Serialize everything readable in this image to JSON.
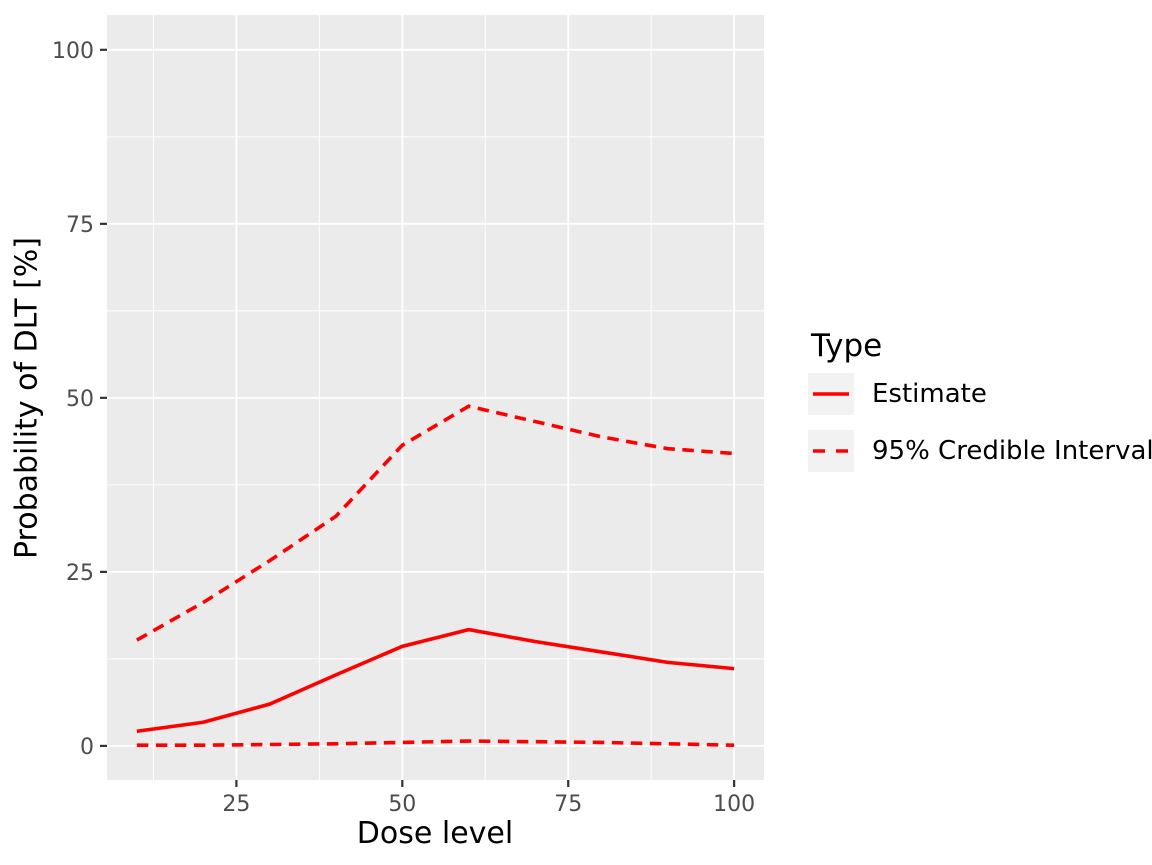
{
  "figure": {
    "background": "#FFFFFF",
    "panel_bg": "#EBEBEB",
    "grid_color": "#FFFFFF",
    "tick_mark_color": "#333333",
    "tick_label_color": "#4D4D4D",
    "axis_title_color": "#000000",
    "line_color": "#FF0000"
  },
  "axes": {
    "x_title": "Dose level",
    "y_title": "Probability of DLT [%]",
    "x_tick_labels": [
      "25",
      "50",
      "75",
      "100"
    ],
    "y_tick_labels": [
      "0",
      "25",
      "50",
      "75",
      "100"
    ]
  },
  "legend": {
    "title": "Type",
    "items": [
      {
        "label": "Estimate",
        "style": "solid"
      },
      {
        "label": "95% Credible Interval",
        "style": "dashed"
      }
    ]
  },
  "chart_data": {
    "type": "line",
    "title": "",
    "xlabel": "Dose level",
    "ylabel": "Probability of DLT [%]",
    "x": [
      10,
      20,
      30,
      40,
      50,
      60,
      70,
      80,
      90,
      100
    ],
    "series": [
      {
        "name": "Estimate",
        "style": "solid",
        "color": "#FF0000",
        "values": [
          2.1,
          3.4,
          6.0,
          10.2,
          14.3,
          16.7,
          15.0,
          13.5,
          12.0,
          11.1
        ]
      },
      {
        "name": "95% Credible Interval (upper)",
        "style": "dashed",
        "color": "#FF0000",
        "values": [
          15.2,
          20.6,
          26.6,
          33.0,
          43.2,
          48.8,
          46.6,
          44.4,
          42.7,
          42.0
        ]
      },
      {
        "name": "95% Credible Interval (lower)",
        "style": "dashed",
        "color": "#FF0000",
        "values": [
          0.1,
          0.1,
          0.2,
          0.3,
          0.5,
          0.7,
          0.6,
          0.5,
          0.3,
          0.1
        ]
      }
    ],
    "xlim": [
      5.5,
      104.5
    ],
    "ylim": [
      -4.9,
      105
    ],
    "x_major": [
      25,
      50,
      75,
      100
    ],
    "x_minor": [
      12.5,
      37.5,
      62.5,
      87.5
    ],
    "y_major": [
      0,
      25,
      50,
      75,
      100
    ],
    "y_minor": [
      12.5,
      37.5,
      62.5,
      87.5
    ],
    "grid": true,
    "legend_position": "right"
  }
}
